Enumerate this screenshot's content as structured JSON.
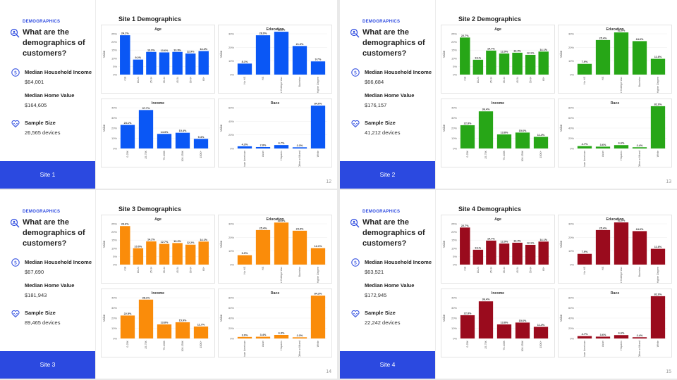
{
  "slides": [
    {
      "tag": "DEMOGRAPHICS",
      "question": "What are the demographics of customers?",
      "income_label": "Median Household Income",
      "income_value": "$64,001",
      "home_label": "Median Home Value",
      "home_value": "$164,605",
      "sample_label": "Sample Size",
      "sample_value": "26,565 devices",
      "site_button": "Site 1",
      "chart_title": "Site 1 Demographics",
      "page_number": "12",
      "color": "#0a57f5"
    },
    {
      "tag": "DEMOGRAPHICS",
      "question": "What are the demographics of customers?",
      "income_label": "Median Household Income",
      "income_value": "$66,684",
      "home_label": "Median Home Value",
      "home_value": "$176,157",
      "sample_label": "Sample Size",
      "sample_value": "41,212 devices",
      "site_button": "Site 2",
      "chart_title": "Site 2 Demographics",
      "page_number": "13",
      "color": "#27a617"
    },
    {
      "tag": "DEMOGRAPHICS",
      "question": "What are the demographics of customers?",
      "income_label": "Median Household Income",
      "income_value": "$67,690",
      "home_label": "Median Home Value",
      "home_value": "$181,943",
      "sample_label": "Sample Size",
      "sample_value": "89,465 devices",
      "site_button": "Site 3",
      "chart_title": "Site 3 Demographics",
      "page_number": "14",
      "color": "#fa8c0a"
    },
    {
      "tag": "DEMOGRAPHICS",
      "question": "What are the demographics of customers?",
      "income_label": "Median Household Income",
      "income_value": "$63,521",
      "home_label": "Median Home Value",
      "home_value": "$172,945",
      "sample_label": "Sample Size",
      "sample_value": "22,242 devices",
      "site_button": "Site 4",
      "chart_title": "Site 4 Demographics",
      "page_number": "15",
      "color": "#9a0b1d"
    }
  ],
  "chart_data": [
    {
      "site": "Site 1",
      "panel": "Age",
      "type": "bar",
      "title": "Age",
      "ylabel": "Value",
      "ylim": [
        0,
        25
      ],
      "yticks": [
        "0%",
        "5%",
        "10%",
        "15%",
        "20%",
        "25%"
      ],
      "categories": [
        "<18",
        "18-24",
        "25-34",
        "35-44",
        "45-54",
        "55-64",
        "65+"
      ],
      "values": [
        24.1,
        9.2,
        13.9,
        13.6,
        13.9,
        12.9,
        14.4
      ],
      "labels": [
        "24.1%",
        "9.2%",
        "13.9%",
        "13.6%",
        "13.9%",
        "12.9%",
        "14.4%"
      ]
    },
    {
      "site": "Site 1",
      "panel": "Education",
      "type": "bar",
      "title": "Education",
      "ylabel": "Value",
      "ylim": [
        0,
        30
      ],
      "yticks": [
        "0%",
        "10%",
        "20%",
        "30%"
      ],
      "categories": [
        "No HS",
        "HS",
        "Some College/ Asc",
        "Bachelor",
        "Higher Degree"
      ],
      "values": [
        8.1,
        28.9,
        32.3,
        21.0,
        9.7
      ],
      "labels": [
        "8.1%",
        "28.9%",
        "32.3%",
        "21.0%",
        "9.7%"
      ]
    },
    {
      "site": "Site 1",
      "panel": "Income",
      "type": "bar",
      "title": "Income",
      "ylabel": "Value",
      "ylim": [
        0,
        40
      ],
      "yticks": [
        "0%",
        "10%",
        "20%",
        "30%",
        "40%"
      ],
      "categories": [
        "0-25K",
        "25-75K",
        "75-100K",
        "100-150K",
        "150K+"
      ],
      "values": [
        23.1,
        37.7,
        14.3,
        15.4,
        9.4
      ],
      "labels": [
        "23.1%",
        "37.7%",
        "14.3%",
        "15.4%",
        "9.4%"
      ]
    },
    {
      "site": "Site 1",
      "panel": "Race",
      "type": "bar",
      "title": "Race",
      "ylabel": "Value",
      "ylim": [
        0,
        80
      ],
      "yticks": [
        "0%",
        "20%",
        "40%",
        "60%"
      ],
      "categories": [
        "African American",
        "Asian",
        "Hispanic",
        "Other or Mixed",
        "White"
      ],
      "values": [
        4.3,
        2.8,
        6.7,
        2.3,
        84.0
      ],
      "labels": [
        "4.3%",
        "2.8%",
        "6.7%",
        "2.3%",
        "84.0%"
      ]
    },
    {
      "site": "Site 2",
      "panel": "Age",
      "type": "bar",
      "title": "Age",
      "ylabel": "Value",
      "ylim": [
        0,
        25
      ],
      "yticks": [
        "0%",
        "5%",
        "10%",
        "15%",
        "20%",
        "25%"
      ],
      "categories": [
        "<18",
        "18-24",
        "25-34",
        "35-44",
        "45-54",
        "55-64",
        "65+"
      ],
      "values": [
        22.7,
        9.1,
        14.7,
        12.9,
        13.4,
        12.1,
        14.1
      ],
      "labels": [
        "22.7%",
        "9.1%",
        "14.7%",
        "12.9%",
        "13.4%",
        "12.1%",
        "14.1%"
      ]
    },
    {
      "site": "Site 2",
      "panel": "Education",
      "type": "bar",
      "title": "Education",
      "ylabel": "Value",
      "ylim": [
        0,
        30
      ],
      "yticks": [
        "0%",
        "10%",
        "20%",
        "30%"
      ],
      "categories": [
        "No HS",
        "HS",
        "Some College/ Asc",
        "Bachelor",
        "Higher Degree"
      ],
      "values": [
        7.9,
        25.4,
        31.0,
        24.6,
        11.6
      ],
      "labels": [
        "7.9%",
        "25.4%",
        "31.0%",
        "24.6%",
        "11.6%"
      ]
    },
    {
      "site": "Site 2",
      "panel": "Income",
      "type": "bar",
      "title": "Income",
      "ylabel": "Value",
      "ylim": [
        0,
        40
      ],
      "yticks": [
        "0%",
        "10%",
        "20%",
        "30%",
        "40%"
      ],
      "categories": [
        "0-25K",
        "25-75K",
        "75-100K",
        "100-150K",
        "150K+"
      ],
      "values": [
        22.8,
        36.4,
        13.8,
        15.6,
        11.4
      ],
      "labels": [
        "22.8%",
        "36.4%",
        "13.8%",
        "15.6%",
        "11.4%"
      ]
    },
    {
      "site": "Site 2",
      "panel": "Race",
      "type": "bar",
      "title": "Race",
      "ylabel": "Value",
      "ylim": [
        0,
        80
      ],
      "yticks": [
        "0%",
        "20%",
        "40%",
        "60%",
        "80%"
      ],
      "categories": [
        "African American",
        "Asian",
        "Hispanic",
        "Other or Mixed",
        "White"
      ],
      "values": [
        4.7,
        3.6,
        6.6,
        2.4,
        82.9
      ],
      "labels": [
        "4.7%",
        "3.6%",
        "6.6%",
        "2.4%",
        "82.9%"
      ]
    },
    {
      "site": "Site 3",
      "panel": "Age",
      "type": "bar",
      "title": "Age",
      "ylabel": "Value",
      "ylim": [
        0,
        25
      ],
      "yticks": [
        "0%",
        "5%",
        "10%",
        "15%",
        "20%",
        "25%"
      ],
      "categories": [
        "<18",
        "18-24",
        "25-34",
        "35-44",
        "45-54",
        "55-64",
        "65+"
      ],
      "values": [
        23.6,
        10.0,
        14.2,
        12.7,
        13.2,
        12.2,
        14.1
      ],
      "labels": [
        "23.6%",
        "10.0%",
        "14.2%",
        "12.7%",
        "13.2%",
        "12.2%",
        "14.1%"
      ]
    },
    {
      "site": "Site 3",
      "panel": "Education",
      "type": "bar",
      "title": "Education",
      "ylabel": "Value",
      "ylim": [
        0,
        30
      ],
      "yticks": [
        "0%",
        "10%",
        "20%",
        "30%"
      ],
      "categories": [
        "No HS",
        "HS",
        "Some College/ Asc",
        "Bachelor",
        "Higher Degree"
      ],
      "values": [
        6.9,
        25.4,
        30.9,
        24.9,
        12.1
      ],
      "labels": [
        "6.9%",
        "25.4%",
        "30.9%",
        "24.9%",
        "12.1%"
      ]
    },
    {
      "site": "Site 3",
      "panel": "Income",
      "type": "bar",
      "title": "Income",
      "ylabel": "Value",
      "ylim": [
        0,
        40
      ],
      "yticks": [
        "0%",
        "10%",
        "20%",
        "30%",
        "40%"
      ],
      "categories": [
        "0-25K",
        "25-75K",
        "75-100K",
        "100-150K",
        "150K+"
      ],
      "values": [
        22.5,
        38.1,
        13.8,
        15.9,
        11.7
      ],
      "labels": [
        "22.5%",
        "38.1%",
        "13.8%",
        "15.9%",
        "11.7%"
      ]
    },
    {
      "site": "Site 3",
      "panel": "Race",
      "type": "bar",
      "title": "Race",
      "ylabel": "Value",
      "ylim": [
        0,
        80
      ],
      "yticks": [
        "0%",
        "20%",
        "40%",
        "60%",
        "80%"
      ],
      "categories": [
        "African American",
        "Asian",
        "Hispanic",
        "Other or Mixed",
        "White"
      ],
      "values": [
        3.0,
        3.4,
        6.9,
        2.3,
        84.3
      ],
      "labels": [
        "3.0%",
        "3.4%",
        "6.9%",
        "2.3%",
        "84.3%"
      ]
    },
    {
      "site": "Site 4",
      "panel": "Age",
      "type": "bar",
      "title": "Age",
      "ylabel": "Value",
      "ylim": [
        0,
        25
      ],
      "yticks": [
        "0%",
        "5%",
        "10%",
        "15%",
        "20%",
        "25%"
      ],
      "categories": [
        "<18",
        "18-24",
        "25-34",
        "35-44",
        "45-54",
        "55-64",
        "65+"
      ],
      "values": [
        22.7,
        9.1,
        14.7,
        12.9,
        13.4,
        12.1,
        14.1
      ],
      "labels": [
        "22.7%",
        "9.1%",
        "14.7%",
        "12.9%",
        "13.4%",
        "12.1%",
        "14.1%"
      ]
    },
    {
      "site": "Site 4",
      "panel": "Education",
      "type": "bar",
      "title": "Education",
      "ylabel": "Value",
      "ylim": [
        0,
        30
      ],
      "yticks": [
        "0%",
        "10%",
        "20%",
        "30%"
      ],
      "categories": [
        "No HS",
        "HS",
        "Some College/ Asc",
        "Bachelor",
        "Higher Degree"
      ],
      "values": [
        7.9,
        25.4,
        31.0,
        24.6,
        11.6
      ],
      "labels": [
        "7.9%",
        "25.4%",
        "31.0%",
        "24.6%",
        "11.6%"
      ]
    },
    {
      "site": "Site 4",
      "panel": "Income",
      "type": "bar",
      "title": "Income",
      "ylabel": "Value",
      "ylim": [
        0,
        40
      ],
      "yticks": [
        "0%",
        "10%",
        "20%",
        "30%",
        "40%"
      ],
      "categories": [
        "0-25K",
        "25-75K",
        "75-100K",
        "100-150K",
        "150K+"
      ],
      "values": [
        22.8,
        36.4,
        13.8,
        15.6,
        11.4
      ],
      "labels": [
        "22.8%",
        "36.4%",
        "13.8%",
        "15.6%",
        "11.4%"
      ]
    },
    {
      "site": "Site 4",
      "panel": "Race",
      "type": "bar",
      "title": "Race",
      "ylabel": "Value",
      "ylim": [
        0,
        80
      ],
      "yticks": [
        "0%",
        "20%",
        "40%",
        "60%",
        "80%"
      ],
      "categories": [
        "African American",
        "Asian",
        "Hispanic",
        "Other or Mixed",
        "White"
      ],
      "values": [
        4.7,
        3.6,
        6.6,
        2.4,
        82.9
      ],
      "labels": [
        "4.7%",
        "3.6%",
        "6.6%",
        "2.4%",
        "82.9%"
      ]
    }
  ]
}
